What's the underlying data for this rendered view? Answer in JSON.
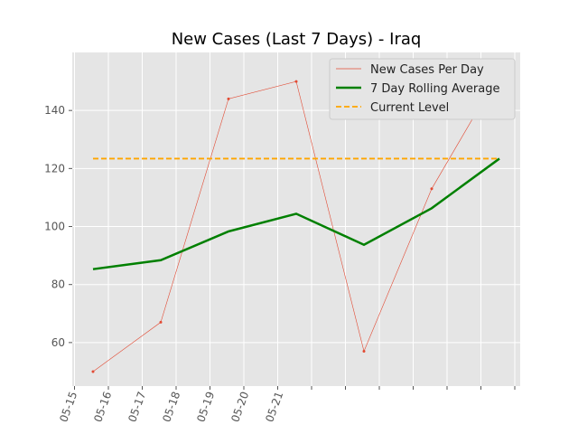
{
  "chart_data": {
    "type": "line",
    "title": "New Cases (Last 7 Days) - Iraq",
    "xlabel": "",
    "ylabel": "",
    "x": [
      "2020-05-15",
      "2020-05-16",
      "2020-05-17",
      "2020-05-18",
      "2020-05-19",
      "2020-05-20",
      "2020-05-21"
    ],
    "x_tick_labels": [
      "05-15",
      "05-16",
      "05-17",
      "05-18",
      "05-19",
      "05-20",
      "05-21"
    ],
    "ylim": [
      45,
      160
    ],
    "y_ticks": [
      60,
      80,
      100,
      120,
      140
    ],
    "grid": true,
    "legend_position": "top-right",
    "series": [
      {
        "name": "New Cases Per Day",
        "style": "thin-line-with-markers",
        "color": "#e24a33",
        "values": [
          50,
          67,
          144,
          150,
          57,
          113,
          153
        ]
      },
      {
        "name": "7 Day Rolling Average",
        "style": "thick-line",
        "color": "#008000",
        "values": [
          85.3,
          88.4,
          98.3,
          104.4,
          93.7,
          106.3,
          123.4
        ]
      },
      {
        "name": "Current Level",
        "style": "dashed-line",
        "color": "#ffa500",
        "values": [
          123.4,
          123.4,
          123.4,
          123.4,
          123.4,
          123.4,
          123.4
        ]
      }
    ]
  }
}
